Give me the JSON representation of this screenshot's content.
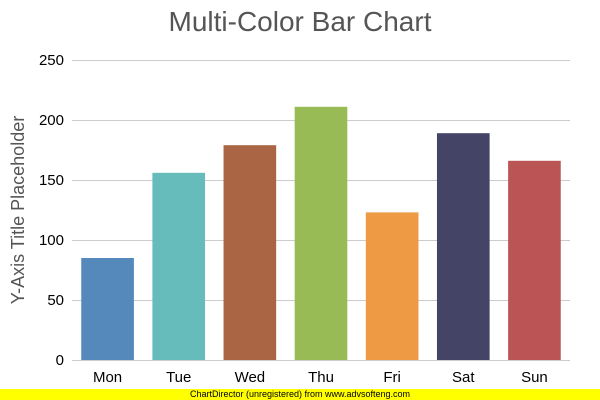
{
  "chart_data": {
    "type": "bar",
    "title": "Multi-Color Bar Chart",
    "xlabel": "",
    "ylabel": "Y-Axis Title Placeholder",
    "categories": [
      "Mon",
      "Tue",
      "Wed",
      "Thu",
      "Fri",
      "Sat",
      "Sun"
    ],
    "values": [
      85,
      156,
      179,
      211,
      123,
      189,
      166
    ],
    "colors": [
      "#5588bb",
      "#66bbbb",
      "#aa6644",
      "#99bb55",
      "#ee9944",
      "#444466",
      "#bb5555"
    ],
    "ylim": [
      0,
      250
    ],
    "yticks": [
      0,
      50,
      100,
      150,
      200,
      250
    ],
    "grid": true,
    "legend": "none"
  },
  "footer": {
    "text": "ChartDirector (unregistered) from www.advsofteng.com",
    "background": "#ffff00"
  }
}
